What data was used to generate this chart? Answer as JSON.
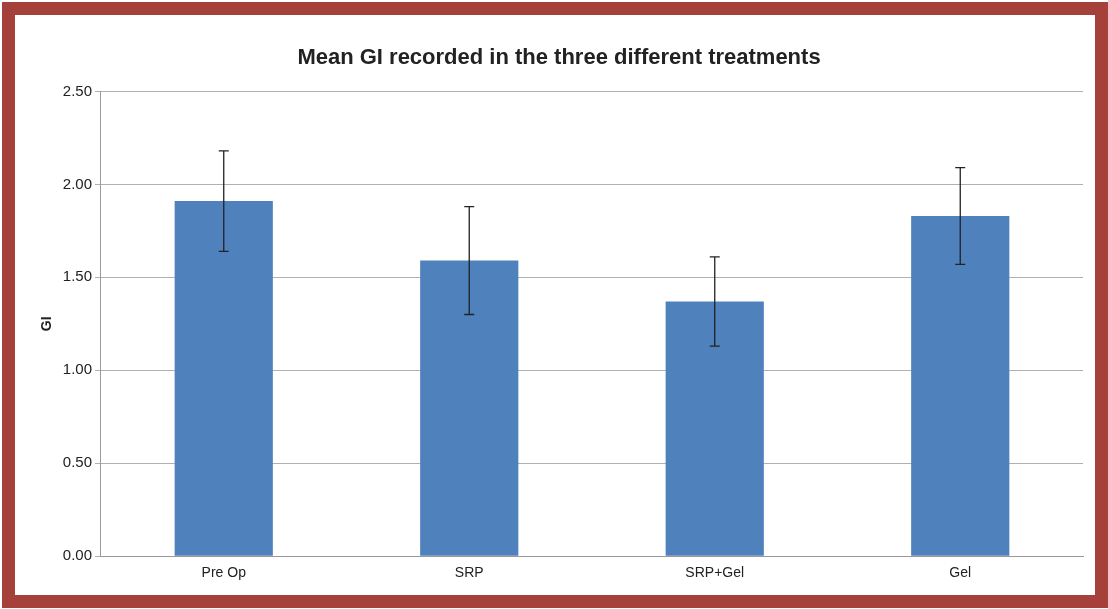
{
  "chart_data": {
    "type": "bar",
    "title": "Mean GI recorded in the three different treatments",
    "ylabel": "GI",
    "categories": [
      "Pre Op",
      "SRP",
      "SRP+Gel",
      "Gel"
    ],
    "values": [
      1.91,
      1.59,
      1.37,
      1.83
    ],
    "errors": [
      0.27,
      0.29,
      0.24,
      0.26
    ],
    "color": "#4f81bd",
    "ylim": [
      0,
      2.5
    ],
    "yticks": [
      {
        "value": 0,
        "label": "0.00"
      },
      {
        "value": 0.5,
        "label": "0.50"
      },
      {
        "value": 1,
        "label": "1.00"
      },
      {
        "value": 1.5,
        "label": "1.50"
      },
      {
        "value": 2,
        "label": "2.00"
      },
      {
        "value": 2.5,
        "label": "2.50"
      }
    ],
    "grid": "y",
    "legend": false
  }
}
